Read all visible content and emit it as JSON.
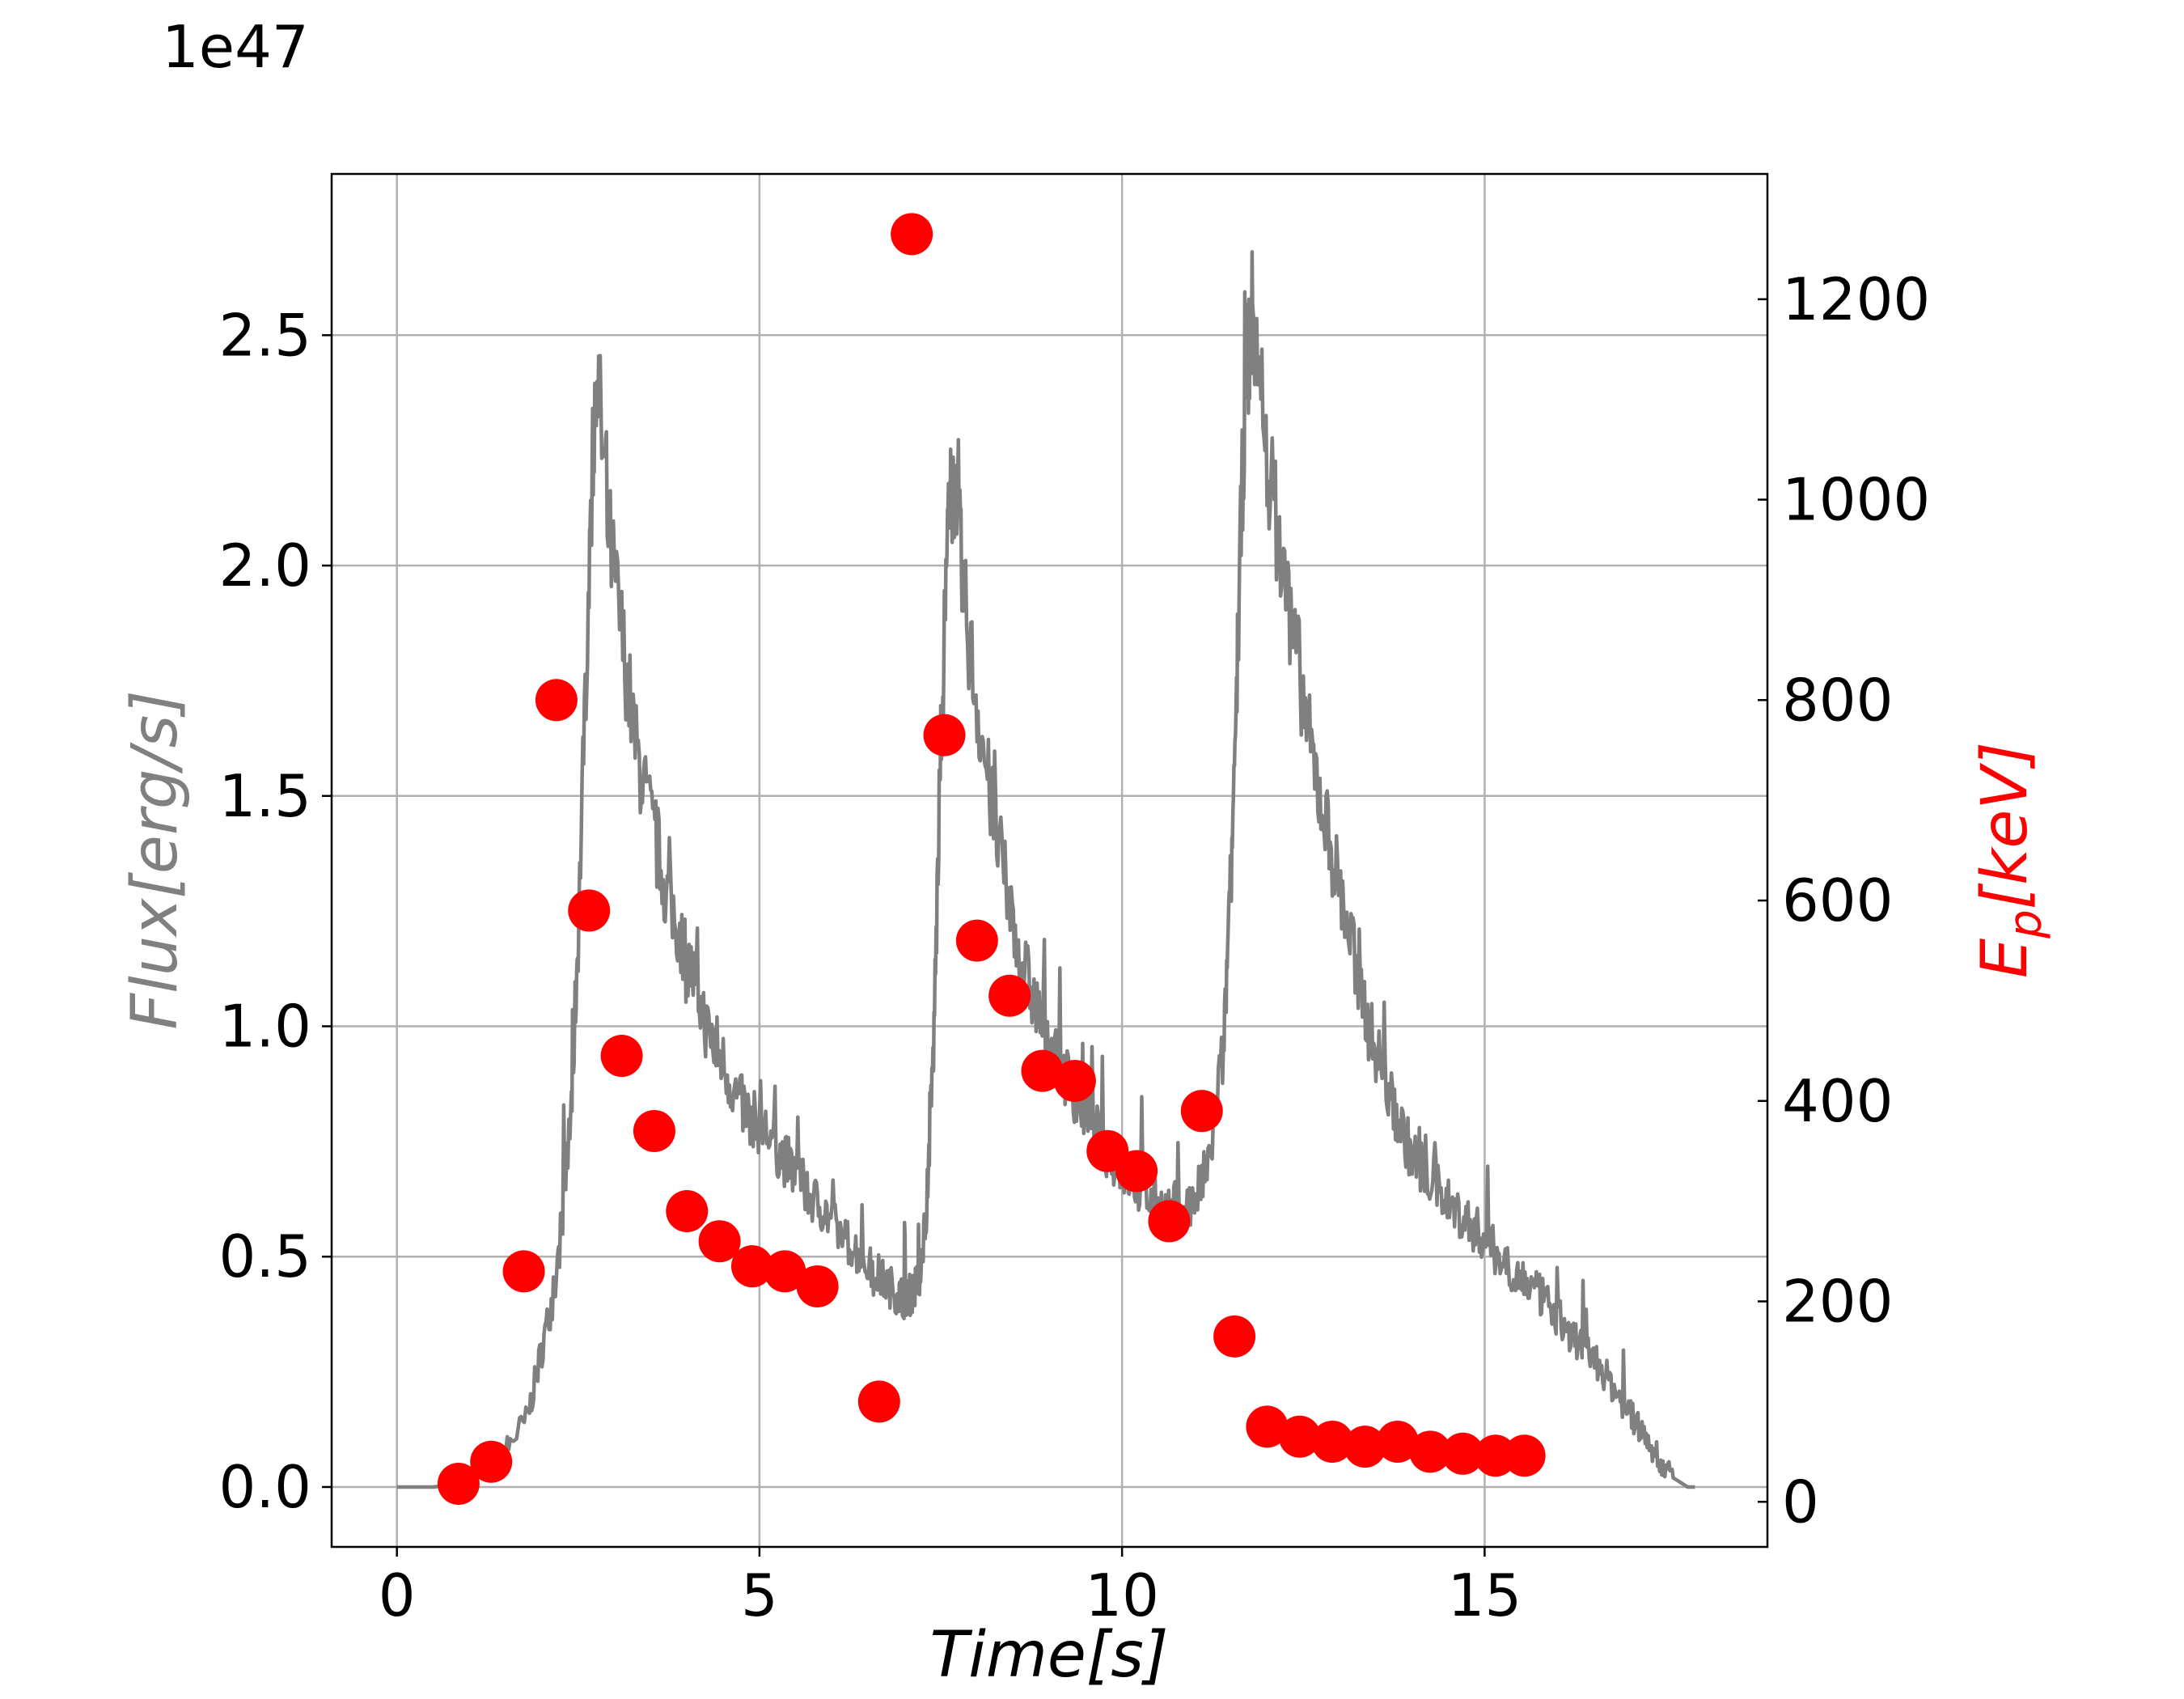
{
  "chart_data": {
    "type": "line+scatter",
    "offset_label": "1e47",
    "xlabel": "Time[s]",
    "ylabel_left": "Flux[erg/s]",
    "ylabel_right_main": "E",
    "ylabel_right_sub": "p",
    "ylabel_right_rest": "[keV]",
    "xlim": [
      -0.9,
      18.9
    ],
    "ylim_left": [
      -0.13,
      2.85
    ],
    "ylim_right": [
      -45,
      1325
    ],
    "xticks": [
      "0",
      "5",
      "10",
      "15"
    ],
    "xtick_values": [
      0,
      5,
      10,
      15
    ],
    "yticks_left": [
      "0.0",
      "0.5",
      "1.0",
      "1.5",
      "2.0",
      "2.5"
    ],
    "ytick_left_values": [
      0,
      0.5,
      1.0,
      1.5,
      2.0,
      2.5
    ],
    "yticks_right": [
      "0",
      "200",
      "400",
      "600",
      "800",
      "1000",
      "1200"
    ],
    "ytick_right_values": [
      0,
      200,
      400,
      600,
      800,
      1000,
      1200
    ],
    "grid": true,
    "colors": {
      "flux": "#808080",
      "ep": "#ff0000",
      "grid": "#b0b0b0",
      "left_label": "#808080",
      "right_label": "#ff0000"
    },
    "series": [
      {
        "kind": "line",
        "x": [
          0,
          0.5,
          1.0,
          1.2,
          1.5,
          1.8,
          2.0,
          2.2,
          2.4,
          2.5,
          2.65,
          2.75,
          2.9,
          3.1,
          3.3,
          3.5,
          3.7,
          3.9,
          4.1,
          4.3,
          4.5,
          4.7,
          4.9,
          5.1,
          5.3,
          5.5,
          5.7,
          5.9,
          6.1,
          6.3,
          6.5,
          6.7,
          6.9,
          7.0,
          7.1,
          7.2,
          7.3,
          7.4,
          7.5,
          7.6,
          7.7,
          7.8,
          8.0,
          8.2,
          8.4,
          8.6,
          8.8,
          9.0,
          9.2,
          9.4,
          9.6,
          9.8,
          10.0,
          10.2,
          10.4,
          10.6,
          10.8,
          11.0,
          11.2,
          11.4,
          11.5,
          11.6,
          11.7,
          11.8,
          12.0,
          12.2,
          12.4,
          12.6,
          12.8,
          13.0,
          13.2,
          13.4,
          13.6,
          13.8,
          14.0,
          14.2,
          14.4,
          14.6,
          14.8,
          15.0,
          15.2,
          15.4,
          15.6,
          15.8,
          16.0,
          16.2,
          16.4,
          16.6,
          16.8,
          17.0,
          17.2,
          17.4,
          17.6,
          17.8,
          17.9
        ],
        "y": [
          0,
          0,
          0.01,
          0.04,
          0.08,
          0.15,
          0.3,
          0.45,
          0.8,
          1.2,
          2.0,
          2.45,
          2.1,
          1.85,
          1.6,
          1.45,
          1.3,
          1.2,
          1.1,
          0.98,
          0.92,
          0.84,
          0.8,
          0.77,
          0.72,
          0.68,
          0.63,
          0.6,
          0.55,
          0.52,
          0.48,
          0.45,
          0.42,
          0.41,
          0.42,
          0.45,
          0.6,
          0.95,
          1.6,
          2.1,
          2.2,
          1.95,
          1.7,
          1.48,
          1.3,
          1.15,
          1.05,
          0.97,
          0.9,
          0.84,
          0.78,
          0.73,
          0.69,
          0.65,
          0.62,
          0.6,
          0.6,
          0.62,
          0.7,
          0.95,
          1.3,
          1.85,
          2.4,
          2.55,
          2.25,
          2.0,
          1.82,
          1.6,
          1.45,
          1.3,
          1.15,
          1.0,
          0.9,
          0.8,
          0.72,
          0.68,
          0.64,
          0.6,
          0.57,
          0.54,
          0.5,
          0.47,
          0.44,
          0.41,
          0.37,
          0.33,
          0.3,
          0.26,
          0.21,
          0.16,
          0.11,
          0.06,
          0.02,
          0.0,
          0.0
        ]
      },
      {
        "kind": "scatter",
        "x": [
          0.85,
          1.3,
          1.75,
          2.2,
          2.65,
          3.1,
          3.55,
          4.0,
          4.45,
          4.9,
          5.35,
          5.8,
          6.65,
          7.1,
          7.55,
          8.0,
          8.45,
          8.9,
          9.35,
          9.8,
          10.2,
          10.65,
          11.1,
          11.55,
          12.0,
          12.45,
          12.9,
          13.35,
          13.8,
          14.25,
          14.7,
          15.15,
          15.55
        ],
        "y": [
          18,
          40,
          230,
          800,
          590,
          445,
          370,
          290,
          260,
          235,
          230,
          215,
          100,
          1265,
          765,
          560,
          505,
          430,
          420,
          350,
          330,
          280,
          390,
          165,
          75,
          65,
          60,
          55,
          60,
          50,
          48,
          46,
          46
        ]
      }
    ]
  }
}
